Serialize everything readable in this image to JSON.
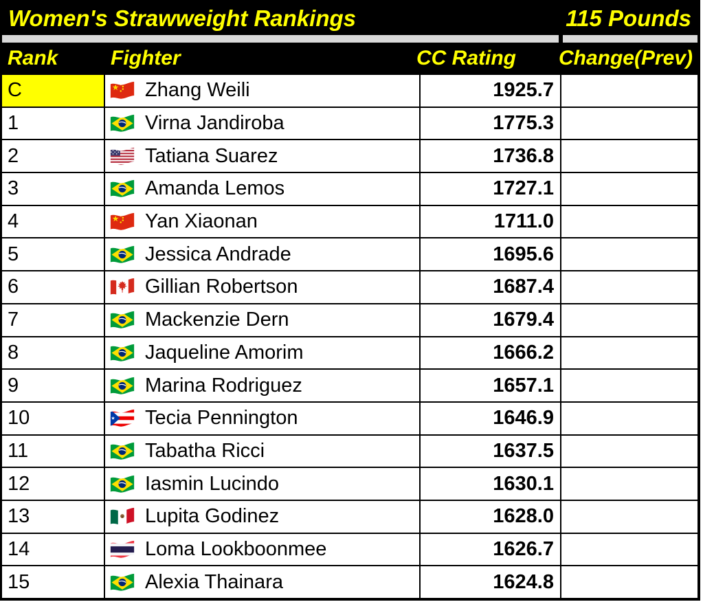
{
  "title": {
    "left": "Women's Strawweight Rankings",
    "right": "115 Pounds"
  },
  "columns": {
    "rank": "Rank",
    "fighter": "Fighter",
    "rating": "CC Rating",
    "change": "Change(Prev)"
  },
  "colors": {
    "accent_yellow": "#FFFF00",
    "header_bg": "#000000",
    "separator_gray": "#D9D9D9",
    "row_bg": "#FFFFFF",
    "border_black": "#000000",
    "champion_highlight": "#FFFF00"
  },
  "rows": [
    {
      "rank": "C",
      "champion": true,
      "flag": "china",
      "fighter": "Zhang Weili",
      "rating": "1925.7",
      "change": ""
    },
    {
      "rank": "1",
      "champion": false,
      "flag": "brazil",
      "fighter": "Virna Jandiroba",
      "rating": "1775.3",
      "change": ""
    },
    {
      "rank": "2",
      "champion": false,
      "flag": "usa",
      "fighter": "Tatiana Suarez",
      "rating": "1736.8",
      "change": ""
    },
    {
      "rank": "3",
      "champion": false,
      "flag": "brazil",
      "fighter": "Amanda Lemos",
      "rating": "1727.1",
      "change": ""
    },
    {
      "rank": "4",
      "champion": false,
      "flag": "china",
      "fighter": "Yan Xiaonan",
      "rating": "1711.0",
      "change": ""
    },
    {
      "rank": "5",
      "champion": false,
      "flag": "brazil",
      "fighter": "Jessica Andrade",
      "rating": "1695.6",
      "change": ""
    },
    {
      "rank": "6",
      "champion": false,
      "flag": "canada",
      "fighter": "Gillian Robertson",
      "rating": "1687.4",
      "change": ""
    },
    {
      "rank": "7",
      "champion": false,
      "flag": "brazil",
      "fighter": "Mackenzie Dern",
      "rating": "1679.4",
      "change": ""
    },
    {
      "rank": "8",
      "champion": false,
      "flag": "brazil",
      "fighter": "Jaqueline Amorim",
      "rating": "1666.2",
      "change": ""
    },
    {
      "rank": "9",
      "champion": false,
      "flag": "brazil",
      "fighter": "Marina Rodriguez",
      "rating": "1657.1",
      "change": ""
    },
    {
      "rank": "10",
      "champion": false,
      "flag": "puerto-rico",
      "fighter": "Tecia Pennington",
      "rating": "1646.9",
      "change": ""
    },
    {
      "rank": "11",
      "champion": false,
      "flag": "brazil",
      "fighter": "Tabatha Ricci",
      "rating": "1637.5",
      "change": ""
    },
    {
      "rank": "12",
      "champion": false,
      "flag": "brazil",
      "fighter": "Iasmin Lucindo",
      "rating": "1630.1",
      "change": ""
    },
    {
      "rank": "13",
      "champion": false,
      "flag": "mexico",
      "fighter": "Lupita Godinez",
      "rating": "1628.0",
      "change": ""
    },
    {
      "rank": "14",
      "champion": false,
      "flag": "thailand",
      "fighter": "Loma Lookboonmee",
      "rating": "1626.7",
      "change": ""
    },
    {
      "rank": "15",
      "champion": false,
      "flag": "brazil",
      "fighter": "Alexia Thainara",
      "rating": "1624.8",
      "change": ""
    }
  ]
}
